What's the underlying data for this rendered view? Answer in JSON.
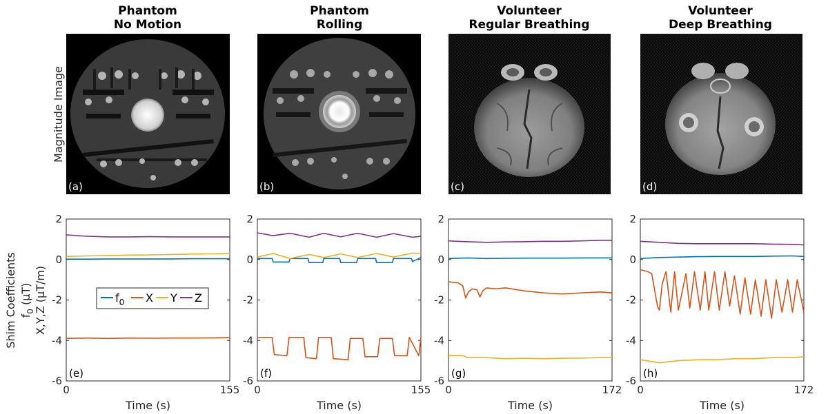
{
  "image_row_label": "Magnitude Image",
  "y_axis_label_lines": [
    "Shim Coefficients",
    "f",
    "0",
    " (",
    "μ",
    "T)",
    "X,Y,Z (",
    "μ",
    "T/m)"
  ],
  "colors": {
    "f0": "#0072BD",
    "X": "#D95319",
    "Y": "#EDB120",
    "Z": "#7E2F8E",
    "axis": "#262626"
  },
  "panels": [
    {
      "title_line1": "Phantom",
      "title_line2": "No Motion",
      "image_label": "(a)",
      "plot_label": "(e)",
      "image_kind": "phantom-no-motion"
    },
    {
      "title_line1": "Phantom",
      "title_line2": "Rolling",
      "image_label": "(b)",
      "plot_label": "(f)",
      "image_kind": "phantom-rolling"
    },
    {
      "title_line1": "Volunteer",
      "title_line2": "Regular Breathing",
      "image_label": "(c)",
      "plot_label": "(g)",
      "image_kind": "brain-regular"
    },
    {
      "title_line1": "Volunteer",
      "title_line2": "Deep Breathing",
      "image_label": "(d)",
      "plot_label": "(h)",
      "image_kind": "brain-deep"
    }
  ],
  "chart_data": [
    {
      "type": "line",
      "panel": "(e)",
      "xlabel": "Time (s)",
      "xlim": [
        0,
        155
      ],
      "ylim": [
        -6,
        2
      ],
      "xticks": [
        "0",
        "155"
      ],
      "yticks": [
        "2",
        "0",
        "-2",
        "-4",
        "-6"
      ],
      "legend": [
        "f0",
        "X",
        "Y",
        "Z"
      ],
      "series": [
        {
          "name": "f0",
          "x": [
            0,
            20,
            40,
            60,
            80,
            100,
            120,
            140,
            155
          ],
          "values": [
            0.02,
            0.02,
            0.03,
            0.03,
            0.03,
            0.03,
            0.04,
            0.04,
            0.04
          ]
        },
        {
          "name": "X",
          "x": [
            0,
            20,
            40,
            60,
            80,
            100,
            120,
            140,
            155
          ],
          "values": [
            -3.9,
            -3.88,
            -3.9,
            -3.88,
            -3.89,
            -3.88,
            -3.88,
            -3.87,
            -3.86
          ]
        },
        {
          "name": "Y",
          "x": [
            0,
            20,
            40,
            60,
            80,
            100,
            120,
            140,
            155
          ],
          "values": [
            0.15,
            0.18,
            0.2,
            0.22,
            0.23,
            0.25,
            0.27,
            0.28,
            0.3
          ]
        },
        {
          "name": "Z",
          "x": [
            0,
            20,
            40,
            60,
            80,
            100,
            120,
            140,
            155
          ],
          "values": [
            1.22,
            1.15,
            1.12,
            1.12,
            1.13,
            1.12,
            1.12,
            1.12,
            1.12
          ]
        }
      ]
    },
    {
      "type": "line",
      "panel": "(f)",
      "xlabel": "Time (s)",
      "xlim": [
        0,
        155
      ],
      "ylim": [
        -6,
        2
      ],
      "xticks": [
        "0",
        "155"
      ],
      "yticks": [
        "2",
        "0",
        "-2",
        "-4",
        "-6"
      ],
      "series": [
        {
          "name": "f0",
          "x": [
            0,
            14,
            15,
            30,
            31,
            48,
            49,
            62,
            63,
            78,
            79,
            94,
            95,
            112,
            113,
            128,
            129,
            146,
            147,
            155
          ],
          "values": [
            0.05,
            0.05,
            -0.12,
            -0.12,
            0.05,
            0.05,
            -0.15,
            -0.15,
            0.05,
            0.05,
            -0.15,
            -0.15,
            0.05,
            0.05,
            -0.15,
            -0.15,
            0.05,
            0.05,
            -0.1,
            0.1
          ]
        },
        {
          "name": "X",
          "x": [
            0,
            14,
            16,
            28,
            30,
            44,
            46,
            56,
            58,
            70,
            72,
            86,
            88,
            100,
            102,
            114,
            116,
            128,
            130,
            142,
            144,
            153,
            155
          ],
          "values": [
            -3.85,
            -3.85,
            -4.7,
            -4.75,
            -3.85,
            -3.85,
            -4.85,
            -4.9,
            -3.85,
            -3.85,
            -4.9,
            -4.95,
            -3.9,
            -3.9,
            -4.8,
            -4.8,
            -3.9,
            -3.9,
            -4.75,
            -4.75,
            -3.85,
            -4.75,
            -3.85
          ]
        },
        {
          "name": "Y",
          "x": [
            0,
            15,
            31,
            49,
            63,
            79,
            95,
            113,
            129,
            147,
            155
          ],
          "values": [
            0.12,
            0.3,
            0.05,
            0.25,
            0.1,
            0.28,
            0.1,
            0.3,
            0.12,
            0.32,
            0.3
          ]
        },
        {
          "name": "Z",
          "x": [
            0,
            15,
            31,
            49,
            63,
            79,
            95,
            113,
            129,
            147,
            155
          ],
          "values": [
            1.32,
            1.18,
            1.3,
            1.1,
            1.3,
            1.12,
            1.3,
            1.1,
            1.28,
            1.1,
            1.15
          ]
        }
      ]
    },
    {
      "type": "line",
      "panel": "(g)",
      "xlabel": "Time (s)",
      "xlim": [
        0,
        172
      ],
      "ylim": [
        -6,
        2
      ],
      "xticks": [
        "0",
        "172"
      ],
      "yticks": [
        "2",
        "0",
        "-2",
        "-4",
        "-6"
      ],
      "series": [
        {
          "name": "f0",
          "x": [
            0,
            20,
            40,
            60,
            80,
            100,
            120,
            140,
            160,
            172
          ],
          "values": [
            0.05,
            0.08,
            0.05,
            0.06,
            0.07,
            0.07,
            0.07,
            0.08,
            0.08,
            0.08
          ]
        },
        {
          "name": "X",
          "x": [
            0,
            10,
            15,
            18,
            21,
            25,
            30,
            33,
            36,
            40,
            50,
            60,
            80,
            100,
            120,
            140,
            160,
            172
          ],
          "values": [
            -1.1,
            -1.15,
            -1.3,
            -1.9,
            -1.6,
            -1.45,
            -1.5,
            -1.85,
            -1.55,
            -1.4,
            -1.45,
            -1.4,
            -1.55,
            -1.65,
            -1.7,
            -1.65,
            -1.6,
            -1.65
          ]
        },
        {
          "name": "Y",
          "x": [
            0,
            15,
            20,
            40,
            60,
            80,
            100,
            120,
            140,
            160,
            172
          ],
          "values": [
            -4.75,
            -4.75,
            -4.85,
            -4.85,
            -4.9,
            -4.88,
            -4.9,
            -4.88,
            -4.87,
            -4.85,
            -4.85
          ]
        },
        {
          "name": "Z",
          "x": [
            0,
            20,
            40,
            60,
            80,
            100,
            120,
            140,
            160,
            172
          ],
          "values": [
            0.92,
            0.88,
            0.85,
            0.87,
            0.88,
            0.9,
            0.9,
            0.92,
            0.95,
            0.95
          ]
        }
      ]
    },
    {
      "type": "line",
      "panel": "(h)",
      "xlabel": "Time (s)",
      "xlim": [
        0,
        172
      ],
      "ylim": [
        -6,
        2
      ],
      "xticks": [
        "0",
        "172"
      ],
      "yticks": [
        "2",
        "0",
        "-2",
        "-4",
        "-6"
      ],
      "series": [
        {
          "name": "f0",
          "x": [
            0,
            20,
            40,
            60,
            80,
            100,
            120,
            140,
            160,
            172
          ],
          "values": [
            0.05,
            0.1,
            0.12,
            0.14,
            0.15,
            0.15,
            0.15,
            0.17,
            0.18,
            0.15
          ]
        },
        {
          "name": "X",
          "x": [
            0,
            8,
            12,
            15,
            18,
            20,
            23,
            27,
            32,
            36,
            40,
            48,
            52,
            57,
            63,
            68,
            72,
            78,
            83,
            89,
            94,
            99,
            105,
            110,
            116,
            121,
            127,
            132,
            138,
            143,
            149,
            155,
            160,
            165,
            172
          ],
          "values": [
            -0.5,
            -0.6,
            -0.7,
            -1.5,
            -2.3,
            -2.5,
            -1.2,
            -0.6,
            -2.6,
            -0.6,
            -2.5,
            -0.7,
            -2.4,
            -0.6,
            -2.5,
            -0.6,
            -2.5,
            -0.6,
            -2.5,
            -0.6,
            -2.3,
            -0.8,
            -2.7,
            -0.9,
            -2.7,
            -1.0,
            -2.8,
            -1.0,
            -2.9,
            -1.0,
            -2.6,
            -1.0,
            -2.6,
            -1.0,
            -2.6
          ]
        },
        {
          "name": "Y",
          "x": [
            0,
            20,
            40,
            60,
            80,
            100,
            120,
            140,
            160,
            172
          ],
          "values": [
            -4.95,
            -5.1,
            -5.0,
            -4.95,
            -4.95,
            -4.9,
            -4.9,
            -4.85,
            -4.85,
            -4.8
          ]
        },
        {
          "name": "Z",
          "x": [
            0,
            20,
            40,
            60,
            80,
            100,
            120,
            140,
            160,
            172
          ],
          "values": [
            0.9,
            0.85,
            0.8,
            0.78,
            0.78,
            0.78,
            0.78,
            0.76,
            0.75,
            0.72
          ]
        }
      ]
    }
  ]
}
